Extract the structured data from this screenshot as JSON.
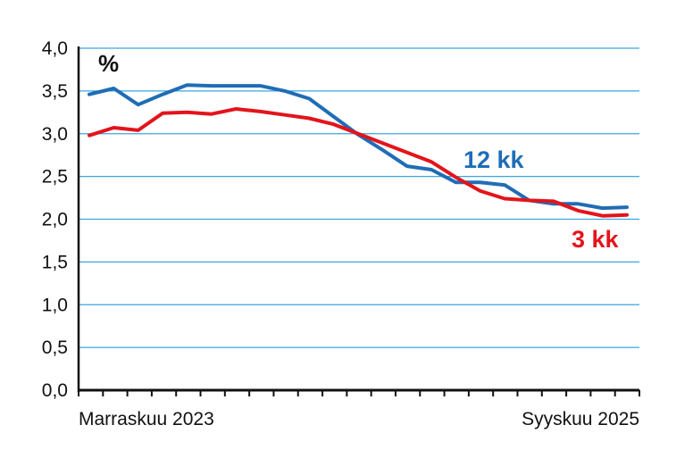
{
  "colors": {
    "grid": "#3aa6dc",
    "axis": "#111111",
    "series_12kk": "#1f6db5",
    "series_3kk": "#e3141b"
  },
  "chart_data": {
    "type": "line",
    "unit": "%",
    "ylim": [
      0,
      4.0
    ],
    "yticks": [
      "0,0",
      "0,5",
      "1,0",
      "1,5",
      "2,0",
      "2,5",
      "3,0",
      "3,5",
      "4,0"
    ],
    "x_labels": {
      "start": "Marraskuu 2023",
      "end": "Syyskuu 2025"
    },
    "x_count": 23,
    "grid": true,
    "series": [
      {
        "name": "12 kk",
        "color_key": "series_12kk",
        "values": [
          3.46,
          3.53,
          3.34,
          3.46,
          3.57,
          3.56,
          3.56,
          3.56,
          3.5,
          3.41,
          3.2,
          2.99,
          2.81,
          2.62,
          2.58,
          2.43,
          2.43,
          2.4,
          2.22,
          2.18,
          2.18,
          2.13,
          2.14
        ]
      },
      {
        "name": "3 kk",
        "color_key": "series_3kk",
        "values": [
          2.98,
          3.07,
          3.04,
          3.24,
          3.25,
          3.23,
          3.29,
          3.26,
          3.22,
          3.18,
          3.11,
          3.0,
          2.89,
          2.78,
          2.67,
          2.49,
          2.33,
          2.24,
          2.22,
          2.21,
          2.1,
          2.04,
          2.05
        ]
      }
    ]
  }
}
